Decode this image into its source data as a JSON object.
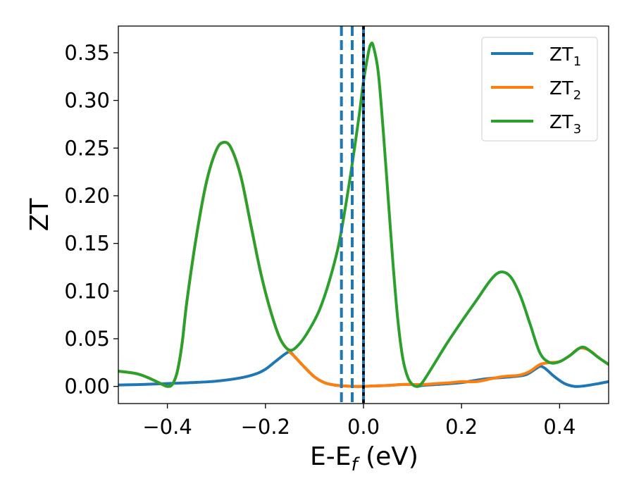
{
  "chart_data": {
    "type": "line",
    "xlabel": {
      "main": "E-E",
      "sub": "f",
      "suffix": " (eV)"
    },
    "ylabel": "ZT",
    "xlim": [
      -0.5,
      0.5
    ],
    "ylim": [
      -0.018,
      0.378
    ],
    "x_ticks": [
      {
        "value": -0.4,
        "label": "−0.4"
      },
      {
        "value": -0.2,
        "label": "−0.2"
      },
      {
        "value": 0.0,
        "label": "0.0"
      },
      {
        "value": 0.2,
        "label": "0.2"
      },
      {
        "value": 0.4,
        "label": "0.4"
      }
    ],
    "y_ticks": [
      {
        "value": 0.0,
        "label": "0.00"
      },
      {
        "value": 0.05,
        "label": "0.05"
      },
      {
        "value": 0.1,
        "label": "0.10"
      },
      {
        "value": 0.15,
        "label": "0.15"
      },
      {
        "value": 0.2,
        "label": "0.20"
      },
      {
        "value": 0.25,
        "label": "0.25"
      },
      {
        "value": 0.3,
        "label": "0.30"
      },
      {
        "value": 0.35,
        "label": "0.35"
      }
    ],
    "grid": false,
    "legend_position": "top-right",
    "series": [
      {
        "name": "ZT",
        "subscript": "1",
        "color": "#1f77b4",
        "points": [
          [
            -0.5,
            0.0015
          ],
          [
            -0.45,
            0.002
          ],
          [
            -0.4,
            0.003
          ],
          [
            -0.35,
            0.004
          ],
          [
            -0.3,
            0.0055
          ],
          [
            -0.25,
            0.009
          ],
          [
            -0.22,
            0.013
          ],
          [
            -0.2,
            0.018
          ],
          [
            -0.18,
            0.026
          ],
          [
            -0.16,
            0.034
          ],
          [
            -0.15,
            0.036
          ],
          [
            -0.14,
            0.031
          ],
          [
            -0.12,
            0.02
          ],
          [
            -0.1,
            0.01
          ],
          [
            -0.08,
            0.004
          ],
          [
            -0.06,
            0.0015
          ],
          [
            -0.04,
            0.0005
          ],
          [
            -0.02,
            0.0
          ],
          [
            0.0,
            0.0
          ],
          [
            0.02,
            0.0005
          ],
          [
            0.05,
            0.001
          ],
          [
            0.08,
            0.002
          ],
          [
            0.1,
            0.002
          ],
          [
            0.11,
            0.0
          ],
          [
            0.12,
            0.001
          ],
          [
            0.15,
            0.002
          ],
          [
            0.2,
            0.004
          ],
          [
            0.25,
            0.008
          ],
          [
            0.3,
            0.01
          ],
          [
            0.33,
            0.012
          ],
          [
            0.35,
            0.018
          ],
          [
            0.36,
            0.021
          ],
          [
            0.37,
            0.019
          ],
          [
            0.39,
            0.01
          ],
          [
            0.41,
            0.003
          ],
          [
            0.43,
            0.0
          ],
          [
            0.45,
            0.0005
          ],
          [
            0.48,
            0.003
          ],
          [
            0.5,
            0.005
          ]
        ]
      },
      {
        "name": "ZT",
        "subscript": "2",
        "color": "#ff7f0e",
        "points": [
          [
            -0.5,
            0.016
          ],
          [
            -0.46,
            0.013
          ],
          [
            -0.43,
            0.007
          ],
          [
            -0.41,
            0.002
          ],
          [
            -0.4,
            0.0
          ],
          [
            -0.39,
            0.002
          ],
          [
            -0.38,
            0.015
          ],
          [
            -0.37,
            0.045
          ],
          [
            -0.36,
            0.09
          ],
          [
            -0.34,
            0.16
          ],
          [
            -0.32,
            0.215
          ],
          [
            -0.3,
            0.248
          ],
          [
            -0.285,
            0.256
          ],
          [
            -0.27,
            0.25
          ],
          [
            -0.25,
            0.22
          ],
          [
            -0.23,
            0.17
          ],
          [
            -0.21,
            0.12
          ],
          [
            -0.19,
            0.08
          ],
          [
            -0.17,
            0.05
          ],
          [
            -0.15,
            0.036
          ],
          [
            -0.14,
            0.031
          ],
          [
            -0.12,
            0.02
          ],
          [
            -0.1,
            0.01
          ],
          [
            -0.08,
            0.004
          ],
          [
            -0.06,
            0.0015
          ],
          [
            -0.04,
            0.0005
          ],
          [
            -0.02,
            0.0
          ],
          [
            0.0,
            0.0
          ],
          [
            0.02,
            0.0005
          ],
          [
            0.05,
            0.001
          ],
          [
            0.08,
            0.002
          ],
          [
            0.1,
            0.002
          ],
          [
            0.12,
            0.002
          ],
          [
            0.15,
            0.003
          ],
          [
            0.18,
            0.004
          ],
          [
            0.2,
            0.005
          ],
          [
            0.23,
            0.005
          ],
          [
            0.26,
            0.008
          ],
          [
            0.28,
            0.01
          ],
          [
            0.3,
            0.011
          ],
          [
            0.32,
            0.012
          ],
          [
            0.34,
            0.016
          ],
          [
            0.36,
            0.023
          ],
          [
            0.38,
            0.025
          ],
          [
            0.4,
            0.026
          ],
          [
            0.42,
            0.032
          ],
          [
            0.44,
            0.04
          ],
          [
            0.46,
            0.038
          ],
          [
            0.48,
            0.03
          ],
          [
            0.5,
            0.023
          ]
        ]
      },
      {
        "name": "ZT",
        "subscript": "3",
        "color": "#2ca02c",
        "points": [
          [
            -0.5,
            0.016
          ],
          [
            -0.46,
            0.013
          ],
          [
            -0.43,
            0.007
          ],
          [
            -0.41,
            0.002
          ],
          [
            -0.4,
            0.0
          ],
          [
            -0.39,
            0.002
          ],
          [
            -0.38,
            0.015
          ],
          [
            -0.37,
            0.045
          ],
          [
            -0.36,
            0.09
          ],
          [
            -0.34,
            0.16
          ],
          [
            -0.32,
            0.215
          ],
          [
            -0.3,
            0.248
          ],
          [
            -0.285,
            0.256
          ],
          [
            -0.27,
            0.25
          ],
          [
            -0.25,
            0.22
          ],
          [
            -0.23,
            0.17
          ],
          [
            -0.21,
            0.12
          ],
          [
            -0.19,
            0.08
          ],
          [
            -0.17,
            0.05
          ],
          [
            -0.15,
            0.038
          ],
          [
            -0.13,
            0.045
          ],
          [
            -0.11,
            0.06
          ],
          [
            -0.09,
            0.08
          ],
          [
            -0.07,
            0.11
          ],
          [
            -0.05,
            0.15
          ],
          [
            -0.03,
            0.21
          ],
          [
            -0.01,
            0.28
          ],
          [
            0.0,
            0.32
          ],
          [
            0.01,
            0.35
          ],
          [
            0.015,
            0.359
          ],
          [
            0.02,
            0.357
          ],
          [
            0.03,
            0.33
          ],
          [
            0.04,
            0.27
          ],
          [
            0.05,
            0.2
          ],
          [
            0.06,
            0.13
          ],
          [
            0.07,
            0.07
          ],
          [
            0.08,
            0.03
          ],
          [
            0.09,
            0.01
          ],
          [
            0.1,
            0.002
          ],
          [
            0.11,
            0.0
          ],
          [
            0.12,
            0.004
          ],
          [
            0.14,
            0.02
          ],
          [
            0.17,
            0.045
          ],
          [
            0.2,
            0.068
          ],
          [
            0.23,
            0.09
          ],
          [
            0.26,
            0.112
          ],
          [
            0.28,
            0.12
          ],
          [
            0.3,
            0.115
          ],
          [
            0.32,
            0.095
          ],
          [
            0.34,
            0.065
          ],
          [
            0.36,
            0.035
          ],
          [
            0.38,
            0.025
          ],
          [
            0.4,
            0.026
          ],
          [
            0.42,
            0.032
          ],
          [
            0.44,
            0.04
          ],
          [
            0.45,
            0.041
          ],
          [
            0.46,
            0.038
          ],
          [
            0.48,
            0.03
          ],
          [
            0.5,
            0.023
          ]
        ]
      }
    ],
    "vertical_lines": [
      {
        "x": -0.045,
        "color": "#1f77b4",
        "style": "dashed"
      },
      {
        "x": -0.023,
        "color": "#1f77b4",
        "style": "dashed"
      },
      {
        "x": 0.0,
        "color": "#1f77b4",
        "style": "solid"
      },
      {
        "x": 0.0,
        "color": "#000000",
        "style": "dotted"
      }
    ]
  }
}
